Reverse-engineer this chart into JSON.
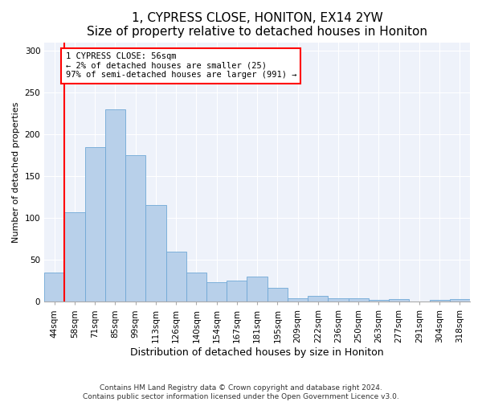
{
  "title": "1, CYPRESS CLOSE, HONITON, EX14 2YW",
  "subtitle": "Size of property relative to detached houses in Honiton",
  "xlabel": "Distribution of detached houses by size in Honiton",
  "ylabel": "Number of detached properties",
  "categories": [
    "44sqm",
    "58sqm",
    "71sqm",
    "85sqm",
    "99sqm",
    "113sqm",
    "126sqm",
    "140sqm",
    "154sqm",
    "167sqm",
    "181sqm",
    "195sqm",
    "209sqm",
    "222sqm",
    "236sqm",
    "250sqm",
    "263sqm",
    "277sqm",
    "291sqm",
    "304sqm",
    "318sqm"
  ],
  "values": [
    35,
    107,
    185,
    230,
    175,
    116,
    60,
    35,
    23,
    25,
    30,
    17,
    4,
    7,
    4,
    4,
    2,
    3,
    0,
    2,
    3
  ],
  "bar_color": "#b8d0ea",
  "bar_edgecolor": "#6fa8d6",
  "annotation_text": "1 CYPRESS CLOSE: 56sqm\n← 2% of detached houses are smaller (25)\n97% of semi-detached houses are larger (991) →",
  "annotation_box_color": "white",
  "annotation_box_edgecolor": "red",
  "highlight_line_color": "red",
  "ylim": [
    0,
    310
  ],
  "yticks": [
    0,
    50,
    100,
    150,
    200,
    250,
    300
  ],
  "footer": "Contains HM Land Registry data © Crown copyright and database right 2024.\nContains public sector information licensed under the Open Government Licence v3.0.",
  "background_color": "#eef2fa",
  "title_fontsize": 11,
  "ylabel_fontsize": 8,
  "xlabel_fontsize": 9,
  "tick_fontsize": 7.5,
  "footer_fontsize": 6.5
}
